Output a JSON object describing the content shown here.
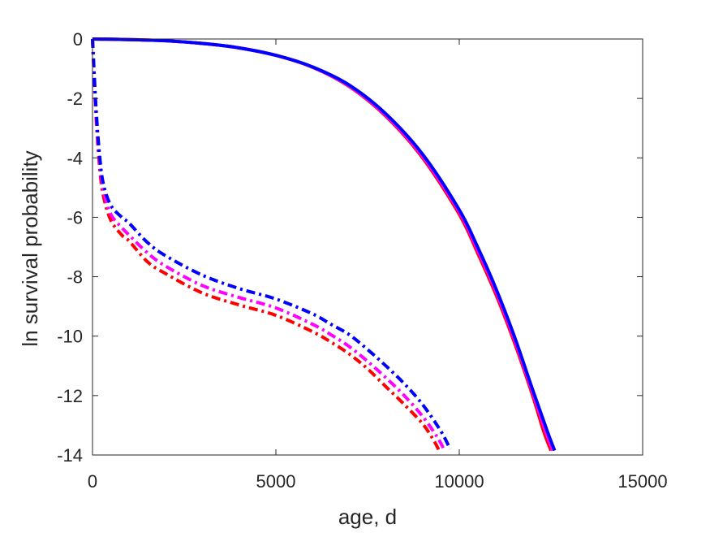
{
  "chart_data": {
    "type": "line",
    "title": "",
    "xlabel": "age, d",
    "ylabel": "ln survival probability",
    "xlim": [
      0,
      15000
    ],
    "ylim": [
      -14,
      0
    ],
    "xticks": [
      0,
      5000,
      10000,
      15000
    ],
    "xtick_labels": [
      "0",
      "5000",
      "10000",
      "15000"
    ],
    "yticks": [
      0,
      -2,
      -4,
      -6,
      -8,
      -10,
      -12,
      -14
    ],
    "ytick_labels": [
      "0",
      "-2",
      "-4",
      "-6",
      "-8",
      "-10",
      "-12",
      "-14"
    ],
    "grid": false,
    "legend": "none",
    "series": [
      {
        "style": "dashdot",
        "color": "#ff0000",
        "x": [
          0,
          100,
          200,
          300,
          500,
          800,
          1000,
          1500,
          2000,
          3000,
          4000,
          5000,
          6000,
          6500,
          7000,
          7500,
          8000,
          8500,
          9000,
          9300,
          9450
        ],
        "y": [
          0,
          -2.7,
          -4.4,
          -5.3,
          -6.1,
          -6.6,
          -6.8,
          -7.5,
          -7.9,
          -8.55,
          -8.95,
          -9.3,
          -9.85,
          -10.2,
          -10.6,
          -11.1,
          -11.7,
          -12.3,
          -12.95,
          -13.5,
          -13.85
        ]
      },
      {
        "style": "dashdot",
        "color": "#ff00ff",
        "x": [
          0,
          100,
          200,
          300,
          500,
          800,
          1000,
          1500,
          2000,
          3000,
          4000,
          5000,
          6000,
          6500,
          7000,
          7500,
          8000,
          8500,
          9000,
          9400,
          9600
        ],
        "y": [
          0,
          -2.6,
          -4.2,
          -5.1,
          -5.9,
          -6.35,
          -6.6,
          -7.2,
          -7.65,
          -8.3,
          -8.7,
          -9.05,
          -9.6,
          -9.95,
          -10.35,
          -10.85,
          -11.4,
          -12.0,
          -12.7,
          -13.4,
          -13.85
        ]
      },
      {
        "style": "dashdot",
        "color": "#0000ff",
        "x": [
          0,
          100,
          200,
          300,
          500,
          800,
          1000,
          1500,
          2000,
          3000,
          4000,
          5000,
          6000,
          6500,
          7000,
          7500,
          8000,
          8500,
          9000,
          9500,
          9750
        ],
        "y": [
          0,
          -2.4,
          -4.0,
          -4.9,
          -5.6,
          -6.0,
          -6.2,
          -6.85,
          -7.3,
          -7.95,
          -8.4,
          -8.75,
          -9.25,
          -9.6,
          -9.95,
          -10.45,
          -11.0,
          -11.6,
          -12.3,
          -13.2,
          -13.8
        ]
      },
      {
        "style": "solid",
        "color": "#ff0000",
        "x": [
          0,
          1000,
          2000,
          3000,
          4000,
          5000,
          6000,
          7000,
          8000,
          9000,
          10000,
          10500,
          11000,
          11500,
          12000,
          12300,
          12500
        ],
        "y": [
          0,
          -0.02,
          -0.06,
          -0.15,
          -0.3,
          -0.55,
          -0.95,
          -1.6,
          -2.6,
          -4.0,
          -5.9,
          -7.2,
          -8.6,
          -10.2,
          -12.0,
          -13.2,
          -13.85
        ]
      },
      {
        "style": "solid",
        "color": "#ff00ff",
        "x": [
          0,
          1000,
          2000,
          3000,
          4000,
          5000,
          6000,
          7000,
          8000,
          9000,
          10000,
          10500,
          11000,
          11500,
          12000,
          12350,
          12550
        ],
        "y": [
          0,
          -0.02,
          -0.06,
          -0.15,
          -0.3,
          -0.55,
          -0.95,
          -1.58,
          -2.57,
          -3.95,
          -5.82,
          -7.1,
          -8.5,
          -10.1,
          -11.9,
          -13.2,
          -13.85
        ]
      },
      {
        "style": "solid",
        "color": "#0000ff",
        "x": [
          0,
          1000,
          2000,
          3000,
          4000,
          5000,
          6000,
          7000,
          8000,
          9000,
          10000,
          10500,
          11000,
          11500,
          12000,
          12400,
          12600
        ],
        "y": [
          0,
          -0.02,
          -0.06,
          -0.15,
          -0.3,
          -0.55,
          -0.94,
          -1.55,
          -2.52,
          -3.88,
          -5.75,
          -7.0,
          -8.4,
          -10.0,
          -11.8,
          -13.2,
          -13.85
        ]
      }
    ]
  }
}
